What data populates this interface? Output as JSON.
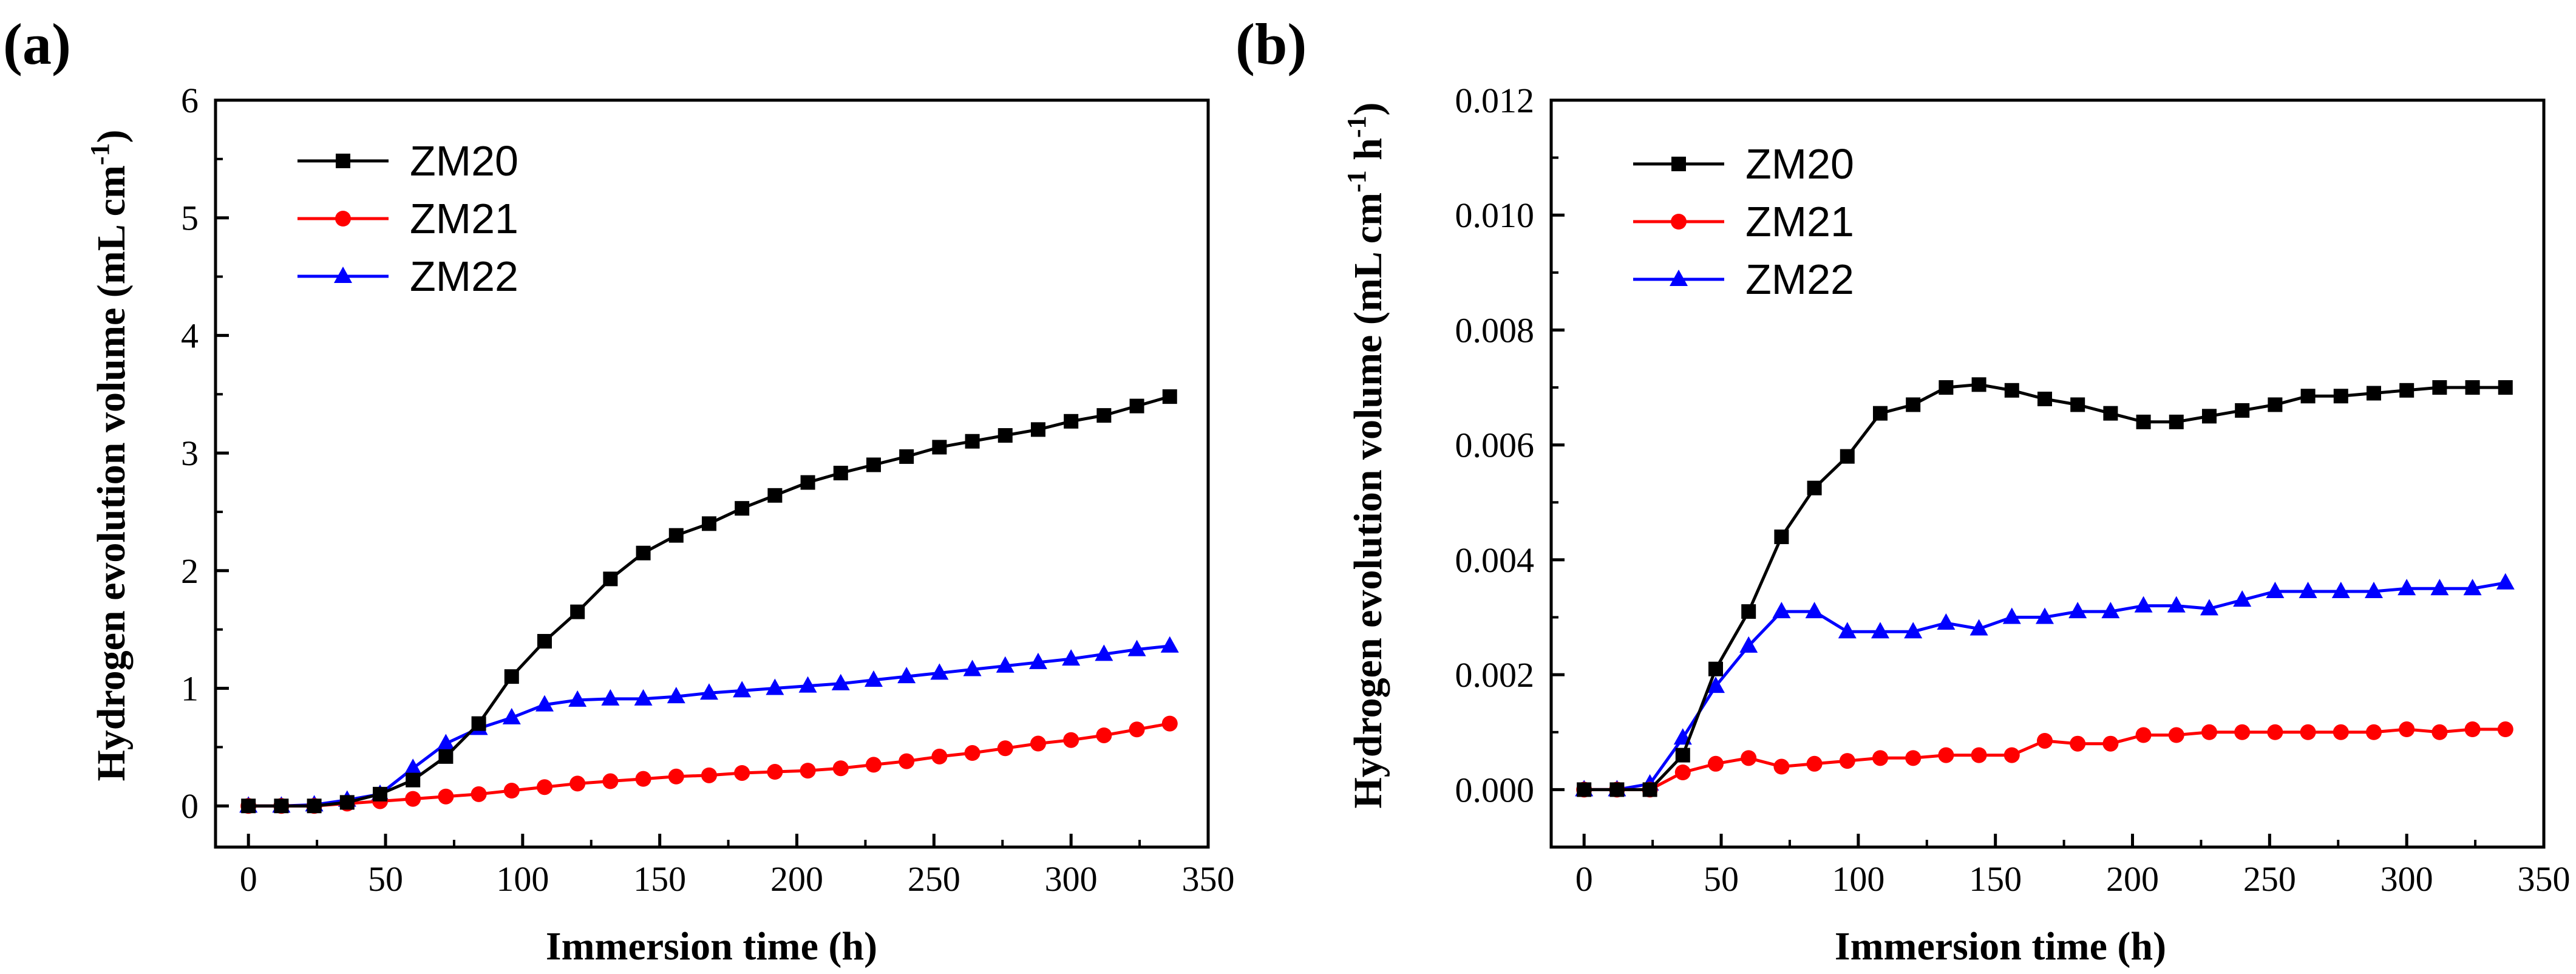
{
  "panels": [
    {
      "label": "(a)",
      "xlabel": "Immersion time (h)",
      "ylabel_main": "Hydrogen evolution volume (mL cm",
      "ylabel_sup": "-1",
      "ylabel_end": ")"
    },
    {
      "label": "(b)",
      "xlabel": "Immersion time (h)",
      "ylabel_main": "Hydrogen evolution volume (mL cm",
      "ylabel_sup": "-1",
      "ylabel_mid": " h",
      "ylabel_sup2": "-1",
      "ylabel_end": ")"
    }
  ],
  "chart_data": [
    {
      "type": "line",
      "panel": "(a)",
      "xlabel": "Immersion time (h)",
      "ylabel": "Hydrogen evolution volume (mL cm-1)",
      "xlim": [
        -12,
        350
      ],
      "ylim": [
        -0.35,
        6
      ],
      "xticks": [
        0,
        50,
        100,
        150,
        200,
        250,
        300,
        350
      ],
      "xtick_labels": [
        "0",
        "50",
        "100",
        "150",
        "200",
        "250",
        "300",
        "350"
      ],
      "yticks": [
        0,
        1,
        2,
        3,
        4,
        5,
        6
      ],
      "ytick_labels": [
        "0",
        "1",
        "2",
        "3",
        "4",
        "5",
        "6"
      ],
      "legend_position": "top-left",
      "x": [
        0,
        12,
        24,
        36,
        48,
        60,
        72,
        84,
        96,
        108,
        120,
        132,
        144,
        156,
        168,
        180,
        192,
        204,
        216,
        228,
        240,
        252,
        264,
        276,
        288,
        300,
        312,
        324,
        336
      ],
      "series": [
        {
          "name": "ZM20",
          "color": "#000000",
          "marker": "square",
          "values": [
            0,
            0,
            0,
            0.03,
            0.1,
            0.22,
            0.42,
            0.7,
            1.1,
            1.4,
            1.65,
            1.93,
            2.15,
            2.3,
            2.4,
            2.53,
            2.64,
            2.75,
            2.83,
            2.9,
            2.97,
            3.05,
            3.1,
            3.15,
            3.2,
            3.27,
            3.32,
            3.4,
            3.48
          ]
        },
        {
          "name": "ZM21",
          "color": "#ff0000",
          "marker": "circle",
          "values": [
            0,
            0,
            0,
            0.02,
            0.04,
            0.06,
            0.08,
            0.1,
            0.13,
            0.16,
            0.19,
            0.21,
            0.23,
            0.25,
            0.26,
            0.28,
            0.29,
            0.3,
            0.32,
            0.35,
            0.38,
            0.42,
            0.45,
            0.49,
            0.53,
            0.56,
            0.6,
            0.65,
            0.7
          ]
        },
        {
          "name": "ZM22",
          "color": "#0000ff",
          "marker": "triangle",
          "values": [
            0,
            0,
            0.01,
            0.05,
            0.1,
            0.32,
            0.53,
            0.66,
            0.75,
            0.86,
            0.9,
            0.91,
            0.91,
            0.93,
            0.96,
            0.98,
            1.0,
            1.02,
            1.04,
            1.07,
            1.1,
            1.13,
            1.16,
            1.19,
            1.22,
            1.25,
            1.29,
            1.33,
            1.36
          ]
        }
      ]
    },
    {
      "type": "line",
      "panel": "(b)",
      "xlabel": "Immersion time (h)",
      "ylabel": "Hydrogen evolution volume (mL cm-1 h-1)",
      "xlim": [
        -12,
        350
      ],
      "ylim": [
        -0.001,
        0.012
      ],
      "xticks": [
        0,
        50,
        100,
        150,
        200,
        250,
        300,
        350
      ],
      "xtick_labels": [
        "0",
        "50",
        "100",
        "150",
        "200",
        "250",
        "300",
        "350"
      ],
      "yticks": [
        0,
        0.002,
        0.004,
        0.006,
        0.008,
        0.01,
        0.012
      ],
      "ytick_labels": [
        "0.000",
        "0.002",
        "0.004",
        "0.006",
        "0.008",
        "0.010",
        "0.012"
      ],
      "legend_position": "top-left",
      "x": [
        0,
        12,
        24,
        36,
        48,
        60,
        72,
        84,
        96,
        108,
        120,
        132,
        144,
        156,
        168,
        180,
        192,
        204,
        216,
        228,
        240,
        252,
        264,
        276,
        288,
        300,
        312,
        324,
        336
      ],
      "series": [
        {
          "name": "ZM20",
          "color": "#000000",
          "marker": "square",
          "values": [
            0,
            0,
            0,
            0.0006,
            0.0021,
            0.0031,
            0.0044,
            0.00525,
            0.0058,
            0.00655,
            0.0067,
            0.007,
            0.00705,
            0.00695,
            0.0068,
            0.0067,
            0.00655,
            0.0064,
            0.0064,
            0.0065,
            0.0066,
            0.0067,
            0.00685,
            0.00685,
            0.0069,
            0.00695,
            0.007,
            0.007,
            0.007
          ]
        },
        {
          "name": "ZM21",
          "color": "#ff0000",
          "marker": "circle",
          "values": [
            0,
            0,
            0,
            0.0003,
            0.00045,
            0.00055,
            0.0004,
            0.00045,
            0.0005,
            0.00055,
            0.00055,
            0.0006,
            0.0006,
            0.0006,
            0.00085,
            0.0008,
            0.0008,
            0.00095,
            0.00095,
            0.001,
            0.001,
            0.001,
            0.001,
            0.001,
            0.001,
            0.00105,
            0.001,
            0.00105,
            0.00105
          ]
        },
        {
          "name": "ZM22",
          "color": "#0000ff",
          "marker": "triangle",
          "values": [
            0,
            0,
            0.0001,
            0.0009,
            0.0018,
            0.0025,
            0.0031,
            0.0031,
            0.00275,
            0.00275,
            0.00275,
            0.0029,
            0.0028,
            0.003,
            0.003,
            0.0031,
            0.0031,
            0.0032,
            0.0032,
            0.00315,
            0.0033,
            0.00345,
            0.00345,
            0.00345,
            0.00345,
            0.0035,
            0.0035,
            0.0035,
            0.0036
          ]
        }
      ]
    }
  ]
}
